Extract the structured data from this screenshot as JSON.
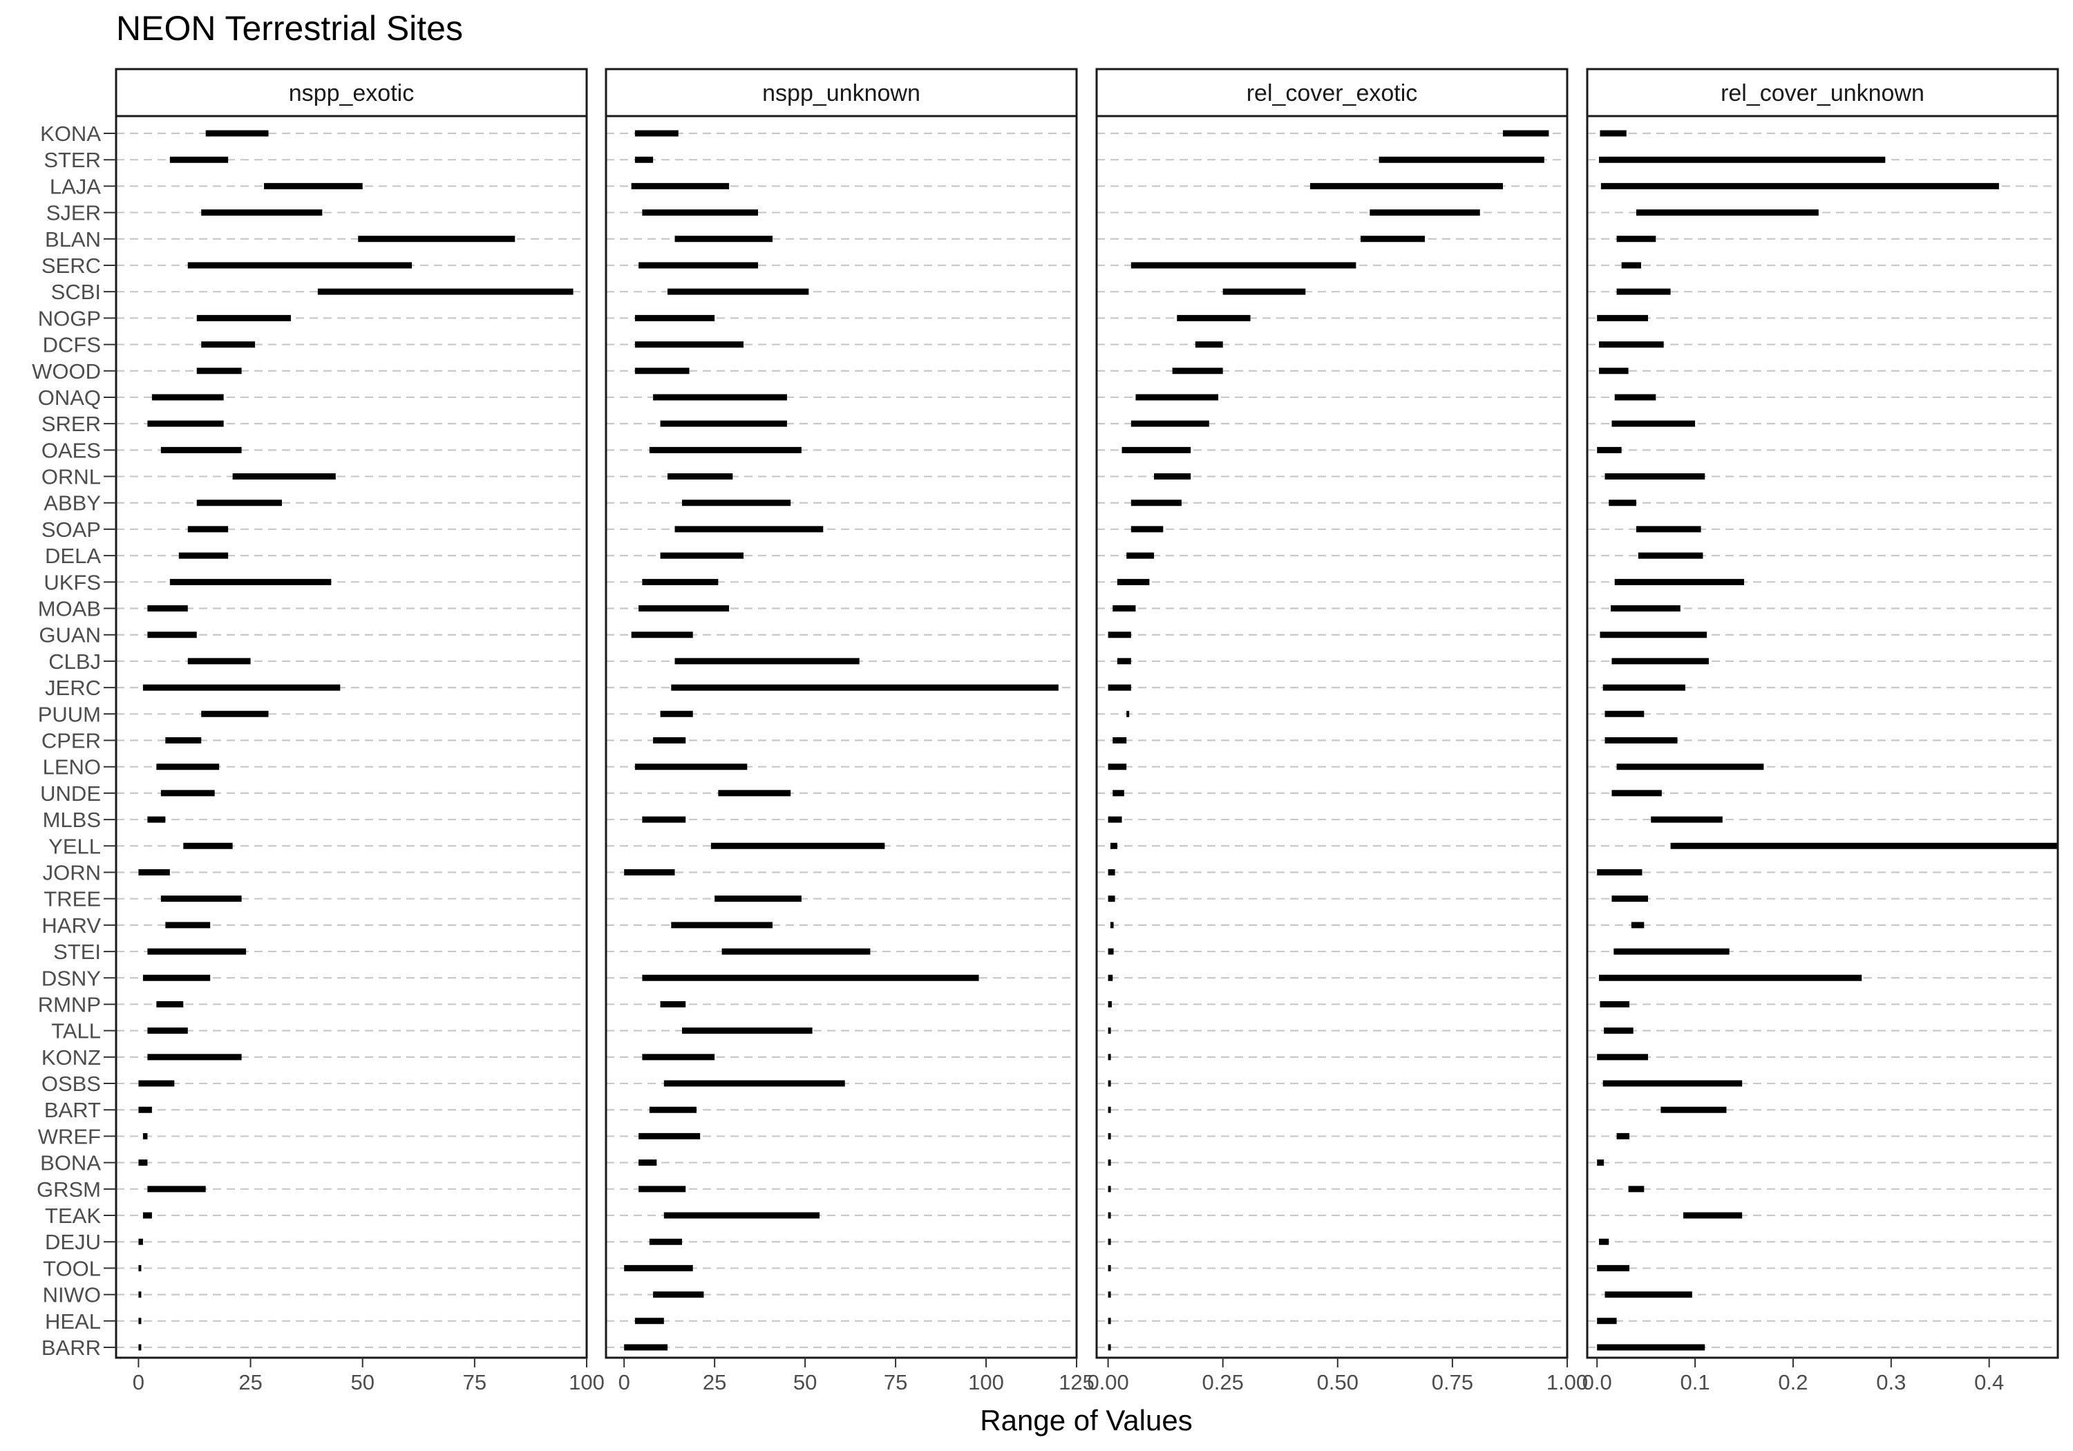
{
  "chart_data": {
    "type": "bar",
    "title": "NEON Terrestrial Sites",
    "xlabel": "Range of Values",
    "ylabel": "",
    "grid": "dashed horizontal per site",
    "sites": [
      "KONA",
      "STER",
      "LAJA",
      "SJER",
      "BLAN",
      "SERC",
      "SCBI",
      "NOGP",
      "DCFS",
      "WOOD",
      "ONAQ",
      "SRER",
      "OAES",
      "ORNL",
      "ABBY",
      "SOAP",
      "DELA",
      "UKFS",
      "MOAB",
      "GUAN",
      "CLBJ",
      "JERC",
      "PUUM",
      "CPER",
      "LENO",
      "UNDE",
      "MLBS",
      "YELL",
      "JORN",
      "TREE",
      "HARV",
      "STEI",
      "DSNY",
      "RMNP",
      "TALL",
      "KONZ",
      "OSBS",
      "BART",
      "WREF",
      "BONA",
      "GRSM",
      "TEAK",
      "DEJU",
      "TOOL",
      "NIWO",
      "HEAL",
      "BARR"
    ],
    "panels": [
      {
        "name": "nspp_exotic",
        "xlim": [
          -5,
          100
        ],
        "ticks": [
          0,
          25,
          50,
          75,
          100
        ],
        "tick_labels": [
          "0",
          "25",
          "50",
          "75",
          "100"
        ],
        "ranges": [
          [
            15,
            29
          ],
          [
            7,
            20
          ],
          [
            28,
            50
          ],
          [
            14,
            41
          ],
          [
            49,
            84
          ],
          [
            11,
            61
          ],
          [
            40,
            97
          ],
          [
            13,
            34
          ],
          [
            14,
            26
          ],
          [
            13,
            23
          ],
          [
            3,
            19
          ],
          [
            2,
            19
          ],
          [
            5,
            23
          ],
          [
            21,
            44
          ],
          [
            13,
            32
          ],
          [
            11,
            20
          ],
          [
            9,
            20
          ],
          [
            7,
            43
          ],
          [
            2,
            11
          ],
          [
            2,
            13
          ],
          [
            11,
            25
          ],
          [
            1,
            45
          ],
          [
            14,
            29
          ],
          [
            6,
            14
          ],
          [
            4,
            18
          ],
          [
            5,
            17
          ],
          [
            2,
            6
          ],
          [
            10,
            21
          ],
          [
            0,
            7
          ],
          [
            5,
            23
          ],
          [
            6,
            16
          ],
          [
            2,
            24
          ],
          [
            1,
            16
          ],
          [
            4,
            10
          ],
          [
            2,
            11
          ],
          [
            2,
            23
          ],
          [
            0,
            8
          ],
          [
            0,
            3
          ],
          [
            1,
            2
          ],
          [
            0,
            2
          ],
          [
            2,
            15
          ],
          [
            1,
            3
          ],
          [
            0,
            1
          ],
          [
            0,
            0
          ],
          [
            0,
            0
          ],
          [
            0,
            0
          ],
          [
            0,
            0
          ]
        ]
      },
      {
        "name": "nspp_unknown",
        "xlim": [
          -5,
          125
        ],
        "ticks": [
          0,
          25,
          50,
          75,
          100,
          125
        ],
        "tick_labels": [
          "0",
          "25",
          "50",
          "75",
          "100",
          "125"
        ],
        "ranges": [
          [
            3,
            15
          ],
          [
            3,
            8
          ],
          [
            2,
            29
          ],
          [
            5,
            37
          ],
          [
            14,
            41
          ],
          [
            4,
            37
          ],
          [
            12,
            51
          ],
          [
            3,
            25
          ],
          [
            3,
            33
          ],
          [
            3,
            18
          ],
          [
            8,
            45
          ],
          [
            10,
            45
          ],
          [
            7,
            49
          ],
          [
            12,
            30
          ],
          [
            16,
            46
          ],
          [
            14,
            55
          ],
          [
            10,
            33
          ],
          [
            5,
            26
          ],
          [
            4,
            29
          ],
          [
            2,
            19
          ],
          [
            14,
            65
          ],
          [
            13,
            120
          ],
          [
            10,
            19
          ],
          [
            8,
            17
          ],
          [
            3,
            34
          ],
          [
            26,
            46
          ],
          [
            5,
            17
          ],
          [
            24,
            72
          ],
          [
            0,
            14
          ],
          [
            25,
            49
          ],
          [
            13,
            41
          ],
          [
            27,
            68
          ],
          [
            5,
            98
          ],
          [
            10,
            17
          ],
          [
            16,
            52
          ],
          [
            5,
            25
          ],
          [
            11,
            61
          ],
          [
            7,
            20
          ],
          [
            4,
            21
          ],
          [
            4,
            9
          ],
          [
            4,
            17
          ],
          [
            11,
            54
          ],
          [
            7,
            16
          ],
          [
            0,
            19
          ],
          [
            8,
            22
          ],
          [
            3,
            11
          ],
          [
            0,
            12
          ]
        ]
      },
      {
        "name": "rel_cover_exotic",
        "xlim": [
          -0.025,
          1.0
        ],
        "ticks": [
          0,
          0.25,
          0.5,
          0.75,
          1.0
        ],
        "tick_labels": [
          "0.00",
          "0.25",
          "0.50",
          "0.75",
          "1.00"
        ],
        "ranges": [
          [
            0.86,
            0.96
          ],
          [
            0.59,
            0.95
          ],
          [
            0.44,
            0.86
          ],
          [
            0.57,
            0.81
          ],
          [
            0.55,
            0.69
          ],
          [
            0.05,
            0.54
          ],
          [
            0.25,
            0.43
          ],
          [
            0.15,
            0.31
          ],
          [
            0.19,
            0.25
          ],
          [
            0.14,
            0.25
          ],
          [
            0.06,
            0.24
          ],
          [
            0.05,
            0.22
          ],
          [
            0.03,
            0.18
          ],
          [
            0.1,
            0.18
          ],
          [
            0.05,
            0.16
          ],
          [
            0.05,
            0.12
          ],
          [
            0.04,
            0.1
          ],
          [
            0.02,
            0.09
          ],
          [
            0.01,
            0.06
          ],
          [
            0.0,
            0.05
          ],
          [
            0.02,
            0.05
          ],
          [
            0.0,
            0.05
          ],
          [
            0.04,
            0.045
          ],
          [
            0.01,
            0.04
          ],
          [
            0.0,
            0.04
          ],
          [
            0.01,
            0.035
          ],
          [
            0.0,
            0.03
          ],
          [
            0.005,
            0.02
          ],
          [
            0.0,
            0.015
          ],
          [
            0.0,
            0.015
          ],
          [
            0.005,
            0.012
          ],
          [
            0.0,
            0.012
          ],
          [
            0.0,
            0.01
          ],
          [
            0.0,
            0.008
          ],
          [
            0.0,
            0.006
          ],
          [
            0.0,
            0.005
          ],
          [
            0.0,
            0.005
          ],
          [
            0.0,
            0.004
          ],
          [
            0.0,
            0.003
          ],
          [
            0.0,
            0.002
          ],
          [
            0.0,
            0.002
          ],
          [
            0.0,
            0.002
          ],
          [
            0.0,
            0.0
          ],
          [
            0.0,
            0.0
          ],
          [
            0.0,
            0.0
          ],
          [
            0.0,
            0.0
          ],
          [
            0.0,
            0.0
          ]
        ]
      },
      {
        "name": "rel_cover_unknown",
        "xlim": [
          -0.01,
          0.47
        ],
        "ticks": [
          0,
          0.1,
          0.2,
          0.3,
          0.4
        ],
        "tick_labels": [
          "0.0",
          "0.1",
          "0.2",
          "0.3",
          "0.4"
        ],
        "ranges": [
          [
            0.003,
            0.03
          ],
          [
            0.002,
            0.294
          ],
          [
            0.004,
            0.41
          ],
          [
            0.04,
            0.226
          ],
          [
            0.02,
            0.06
          ],
          [
            0.025,
            0.045
          ],
          [
            0.02,
            0.075
          ],
          [
            0.0,
            0.052
          ],
          [
            0.002,
            0.068
          ],
          [
            0.002,
            0.032
          ],
          [
            0.018,
            0.06
          ],
          [
            0.015,
            0.1
          ],
          [
            0.0,
            0.025
          ],
          [
            0.008,
            0.11
          ],
          [
            0.012,
            0.04
          ],
          [
            0.04,
            0.106
          ],
          [
            0.042,
            0.108
          ],
          [
            0.018,
            0.15
          ],
          [
            0.014,
            0.085
          ],
          [
            0.003,
            0.112
          ],
          [
            0.015,
            0.114
          ],
          [
            0.006,
            0.09
          ],
          [
            0.008,
            0.048
          ],
          [
            0.008,
            0.082
          ],
          [
            0.02,
            0.17
          ],
          [
            0.015,
            0.066
          ],
          [
            0.055,
            0.128
          ],
          [
            0.075,
            0.47
          ],
          [
            0.0,
            0.046
          ],
          [
            0.015,
            0.052
          ],
          [
            0.035,
            0.048
          ],
          [
            0.017,
            0.135
          ],
          [
            0.002,
            0.27
          ],
          [
            0.003,
            0.033
          ],
          [
            0.007,
            0.037
          ],
          [
            0.0,
            0.052
          ],
          [
            0.006,
            0.148
          ],
          [
            0.065,
            0.132
          ],
          [
            0.02,
            0.033
          ],
          [
            0.0,
            0.007
          ],
          [
            0.032,
            0.048
          ],
          [
            0.088,
            0.148
          ],
          [
            0.002,
            0.012
          ],
          [
            0.0,
            0.033
          ],
          [
            0.008,
            0.097
          ],
          [
            0.0,
            0.02
          ],
          [
            0.0,
            0.11
          ]
        ]
      }
    ]
  }
}
